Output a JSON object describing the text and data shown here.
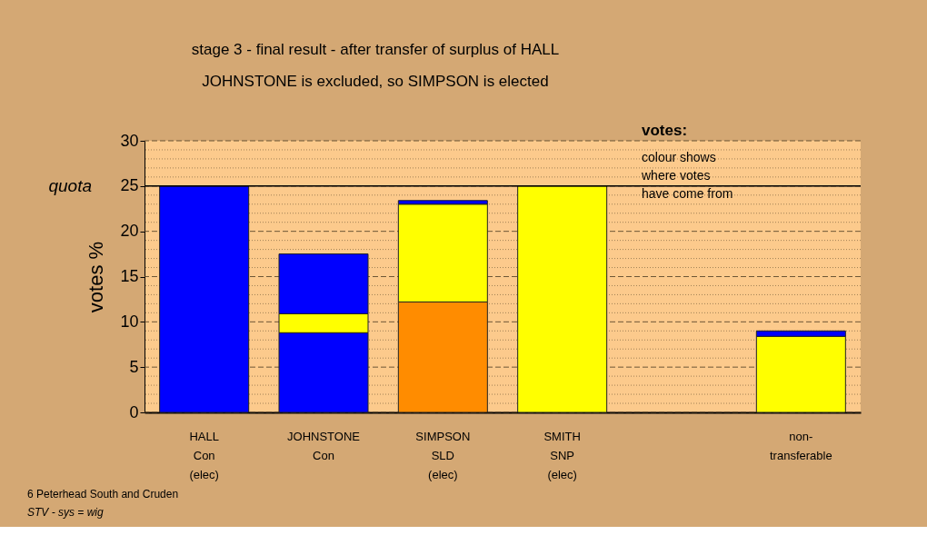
{
  "chart_data": {
    "type": "bar",
    "stacked": true,
    "title": "stage 3 - final result - after transfer of surplus of HALL",
    "subtitle": "JOHNSTONE is excluded, so SIMPSON is elected",
    "ylabel": "votes %",
    "categories": [
      "HALL\nCon\n(elec)",
      "JOHNSTONE\nCon",
      "SIMPSON\nSLD\n(elec)",
      "SMITH\nSNP\n(elec)",
      null,
      "non-\ntransferable"
    ],
    "series": [
      {
        "values": [
          25,
          8.8,
          12.2,
          25,
          null,
          8.4
        ],
        "colors": [
          "#0000ff",
          "#0000ff",
          "#ff8c00",
          "#ffff00",
          null,
          "#ffff00"
        ]
      },
      {
        "values": [
          null,
          2.1,
          10.8,
          null,
          null,
          0.6
        ],
        "colors": [
          null,
          "#ffff00",
          "#ffff00",
          null,
          null,
          "#0000ff"
        ]
      },
      {
        "values": [
          null,
          6.6,
          0.4,
          null,
          null,
          null
        ],
        "colors": [
          null,
          "#0000ff",
          "#0000ff",
          null,
          null,
          null
        ]
      }
    ],
    "ylim": [
      0,
      30
    ],
    "yticks": [
      0,
      {
        "value": 1,
        "label": null
      },
      {
        "value": 2,
        "label": null
      },
      {
        "value": 3,
        "label": null
      },
      {
        "value": 4,
        "label": null
      },
      5,
      {
        "value": 6,
        "label": null
      },
      {
        "value": 7,
        "label": null
      },
      {
        "value": 8,
        "label": null
      },
      {
        "value": 9,
        "label": null
      },
      10,
      {
        "value": 11,
        "label": null
      },
      {
        "value": 12,
        "label": null
      },
      {
        "value": 13,
        "label": null
      },
      {
        "value": 14,
        "label": null
      },
      15,
      {
        "value": 16,
        "label": null
      },
      {
        "value": 17,
        "label": null
      },
      {
        "value": 18,
        "label": null
      },
      {
        "value": 19,
        "label": null
      },
      20,
      {
        "value": 21,
        "label": null
      },
      {
        "value": 22,
        "label": null
      },
      {
        "value": 23,
        "label": null
      },
      {
        "value": 24,
        "label": null
      },
      25,
      {
        "value": 26,
        "label": null
      },
      {
        "value": 27,
        "label": null
      },
      {
        "value": 28,
        "label": null
      },
      {
        "value": 29,
        "label": null
      },
      30
    ],
    "grid": "y",
    "ref_lines": [
      {
        "axis": "y",
        "value": 25,
        "label": "quota",
        "color": "#000000",
        "line_style": "solid"
      }
    ],
    "annotations": [
      "votes:",
      "colour shows\nwhere votes\nhave come from",
      "6 Peterhead South and Cruden",
      "STV - sys = wig"
    ]
  }
}
